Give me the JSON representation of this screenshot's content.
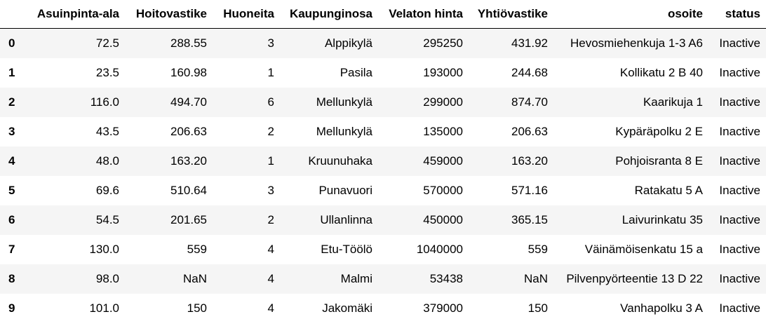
{
  "table": {
    "index_header": "",
    "columns": [
      "Asuinpinta-ala",
      "Hoitovastike",
      "Huoneita",
      "Kaupunginosa",
      "Velaton hinta",
      "Yhtiövastike",
      "osoite",
      "status"
    ],
    "rows": [
      {
        "index": "0",
        "cells": [
          "72.5",
          "288.55",
          "3",
          "Alppikylä",
          "295250",
          "431.92",
          "Hevosmiehenkuja 1-3 A6",
          "Inactive"
        ]
      },
      {
        "index": "1",
        "cells": [
          "23.5",
          "160.98",
          "1",
          "Pasila",
          "193000",
          "244.68",
          "Kollikatu 2 B 40",
          "Inactive"
        ]
      },
      {
        "index": "2",
        "cells": [
          "116.0",
          "494.70",
          "6",
          "Mellunkylä",
          "299000",
          "874.70",
          "Kaarikuja 1",
          "Inactive"
        ]
      },
      {
        "index": "3",
        "cells": [
          "43.5",
          "206.63",
          "2",
          "Mellunkylä",
          "135000",
          "206.63",
          "Kypäräpolku 2 E",
          "Inactive"
        ]
      },
      {
        "index": "4",
        "cells": [
          "48.0",
          "163.20",
          "1",
          "Kruunuhaka",
          "459000",
          "163.20",
          "Pohjoisranta 8 E",
          "Inactive"
        ]
      },
      {
        "index": "5",
        "cells": [
          "69.6",
          "510.64",
          "3",
          "Punavuori",
          "570000",
          "571.16",
          "Ratakatu 5 A",
          "Inactive"
        ]
      },
      {
        "index": "6",
        "cells": [
          "54.5",
          "201.65",
          "2",
          "Ullanlinna",
          "450000",
          "365.15",
          "Laivurinkatu 35",
          "Inactive"
        ]
      },
      {
        "index": "7",
        "cells": [
          "130.0",
          "559",
          "4",
          "Etu-Töölö",
          "1040000",
          "559",
          "Väinämöisenkatu 15 a",
          "Inactive"
        ]
      },
      {
        "index": "8",
        "cells": [
          "98.0",
          "NaN",
          "4",
          "Malmi",
          "53438",
          "NaN",
          "Pilvenpyörteentie 13 D 22",
          "Inactive"
        ]
      },
      {
        "index": "9",
        "cells": [
          "101.0",
          "150",
          "4",
          "Jakomäki",
          "379000",
          "150",
          "Vanhapolku 3 A",
          "Inactive"
        ]
      }
    ]
  }
}
